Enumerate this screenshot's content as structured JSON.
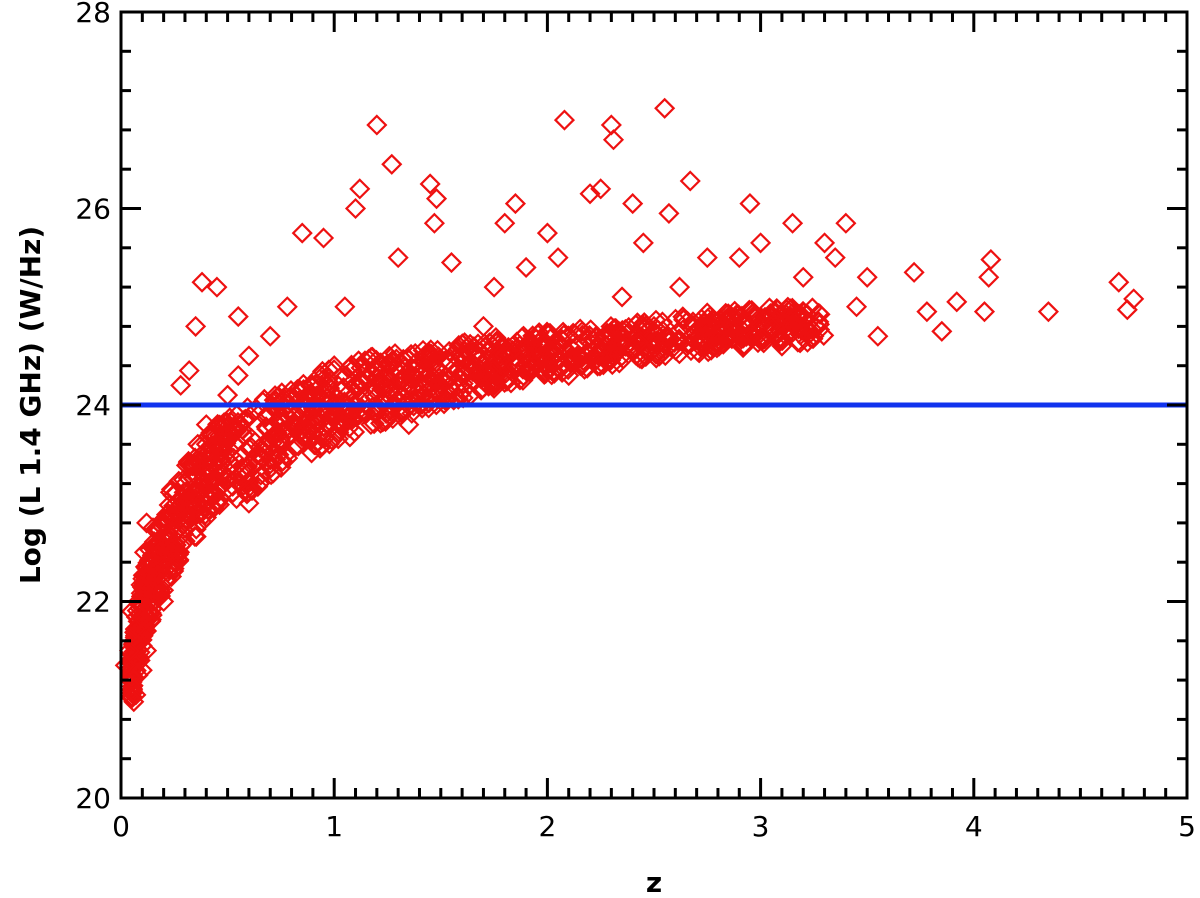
{
  "chart_data": {
    "type": "scatter",
    "title": "",
    "xlabel": "z",
    "ylabel": "Log (L 1.4 GHz) (W/Hz)",
    "xlim": [
      0,
      5
    ],
    "ylim": [
      20,
      28
    ],
    "xticks": [
      0,
      1,
      2,
      3,
      4,
      5
    ],
    "yticks": [
      20,
      22,
      24,
      26,
      28
    ],
    "x_tick_labels": [
      "0",
      "1",
      "2",
      "3",
      "4",
      "5"
    ],
    "y_tick_labels": [
      "20",
      "22",
      "24",
      "26",
      "28"
    ],
    "grid": false,
    "marker": "diamond",
    "colors": {
      "points": "#ee1111",
      "threshold": "#1133ee"
    },
    "threshold": {
      "y": 24
    },
    "series": [
      {
        "values": [
          [
            0.06,
            20.98
          ],
          [
            0.07,
            21.05
          ],
          [
            0.08,
            21.25
          ],
          [
            0.09,
            21.4
          ],
          [
            0.1,
            21.55
          ],
          [
            0.12,
            21.7
          ],
          [
            0.13,
            21.9
          ],
          [
            0.15,
            22.1
          ],
          [
            0.16,
            22.35
          ],
          [
            0.18,
            22.5
          ],
          [
            0.1,
            21.3
          ],
          [
            0.12,
            21.5
          ],
          [
            0.14,
            21.8
          ],
          [
            0.11,
            22.5
          ],
          [
            0.12,
            22.8
          ],
          [
            0.2,
            22.0
          ],
          [
            0.22,
            22.3
          ],
          [
            0.25,
            22.6
          ],
          [
            0.27,
            22.9
          ],
          [
            0.3,
            23.2
          ],
          [
            0.33,
            23.4
          ],
          [
            0.36,
            23.6
          ],
          [
            0.4,
            23.8
          ],
          [
            0.28,
            24.2
          ],
          [
            0.32,
            24.35
          ],
          [
            0.35,
            24.8
          ],
          [
            0.38,
            25.25
          ],
          [
            0.45,
            25.2
          ],
          [
            0.55,
            24.9
          ],
          [
            0.6,
            23.0
          ],
          [
            0.65,
            23.2
          ],
          [
            0.7,
            23.4
          ],
          [
            0.75,
            23.6
          ],
          [
            0.8,
            23.8
          ],
          [
            0.85,
            23.9
          ],
          [
            0.9,
            24.0
          ],
          [
            0.5,
            24.1
          ],
          [
            0.55,
            24.3
          ],
          [
            0.6,
            24.5
          ],
          [
            0.7,
            24.7
          ],
          [
            0.78,
            25.0
          ],
          [
            0.85,
            25.75
          ],
          [
            0.95,
            25.7
          ],
          [
            1.0,
            24.4
          ],
          [
            1.05,
            25.0
          ],
          [
            1.1,
            26.0
          ],
          [
            1.12,
            26.2
          ],
          [
            1.2,
            26.85
          ],
          [
            1.27,
            26.45
          ],
          [
            1.3,
            25.5
          ],
          [
            1.35,
            23.8
          ],
          [
            1.4,
            24.0
          ],
          [
            1.45,
            26.25
          ],
          [
            1.48,
            26.1
          ],
          [
            1.47,
            25.85
          ],
          [
            1.55,
            25.45
          ],
          [
            1.6,
            24.5
          ],
          [
            1.7,
            24.8
          ],
          [
            1.75,
            25.2
          ],
          [
            1.8,
            25.85
          ],
          [
            1.85,
            26.05
          ],
          [
            1.9,
            25.4
          ],
          [
            2.0,
            25.75
          ],
          [
            2.05,
            25.5
          ],
          [
            2.08,
            26.9
          ],
          [
            2.1,
            24.3
          ],
          [
            2.2,
            26.15
          ],
          [
            2.25,
            26.2
          ],
          [
            2.3,
            26.85
          ],
          [
            2.31,
            26.7
          ],
          [
            2.35,
            25.1
          ],
          [
            2.4,
            26.05
          ],
          [
            2.45,
            25.65
          ],
          [
            2.5,
            24.8
          ],
          [
            2.55,
            27.02
          ],
          [
            2.57,
            25.95
          ],
          [
            2.62,
            25.2
          ],
          [
            2.67,
            26.28
          ],
          [
            2.75,
            25.5
          ],
          [
            2.8,
            24.7
          ],
          [
            2.9,
            25.5
          ],
          [
            2.95,
            26.05
          ],
          [
            3.0,
            25.65
          ],
          [
            3.05,
            24.8
          ],
          [
            3.1,
            24.6
          ],
          [
            3.15,
            25.85
          ],
          [
            3.2,
            25.3
          ],
          [
            3.25,
            24.7
          ],
          [
            3.3,
            25.65
          ],
          [
            3.35,
            25.5
          ],
          [
            3.4,
            25.85
          ],
          [
            3.45,
            25.0
          ],
          [
            3.5,
            25.3
          ],
          [
            3.55,
            24.7
          ],
          [
            3.72,
            25.35
          ],
          [
            3.78,
            24.95
          ],
          [
            3.85,
            24.75
          ],
          [
            3.92,
            25.05
          ],
          [
            4.05,
            24.95
          ],
          [
            4.07,
            25.3
          ],
          [
            4.08,
            25.48
          ],
          [
            4.35,
            24.95
          ],
          [
            4.68,
            25.25
          ],
          [
            4.72,
            24.97
          ],
          [
            4.75,
            25.08
          ],
          [
            0.02,
            21.35
          ],
          [
            0.04,
            21.5
          ],
          [
            0.05,
            21.9
          ],
          [
            0.15,
            22.75
          ],
          [
            0.4,
            23.6
          ]
        ]
      }
    ],
    "density_band": {
      "z": [
        0.05,
        0.1,
        0.2,
        0.3,
        0.4,
        0.5,
        0.6,
        0.8,
        1.0,
        1.2,
        1.5,
        1.8,
        2.0,
        2.3,
        2.6,
        3.0,
        3.3
      ],
      "lower": [
        21.0,
        21.6,
        22.1,
        22.5,
        22.8,
        23.0,
        23.1,
        23.4,
        23.6,
        23.8,
        24.0,
        24.2,
        24.3,
        24.4,
        24.5,
        24.6,
        24.65
      ],
      "upper": [
        21.5,
        22.3,
        23.0,
        23.4,
        23.7,
        23.9,
        24.0,
        24.2,
        24.4,
        24.5,
        24.6,
        24.7,
        24.75,
        24.8,
        24.9,
        25.0,
        25.0
      ]
    }
  }
}
